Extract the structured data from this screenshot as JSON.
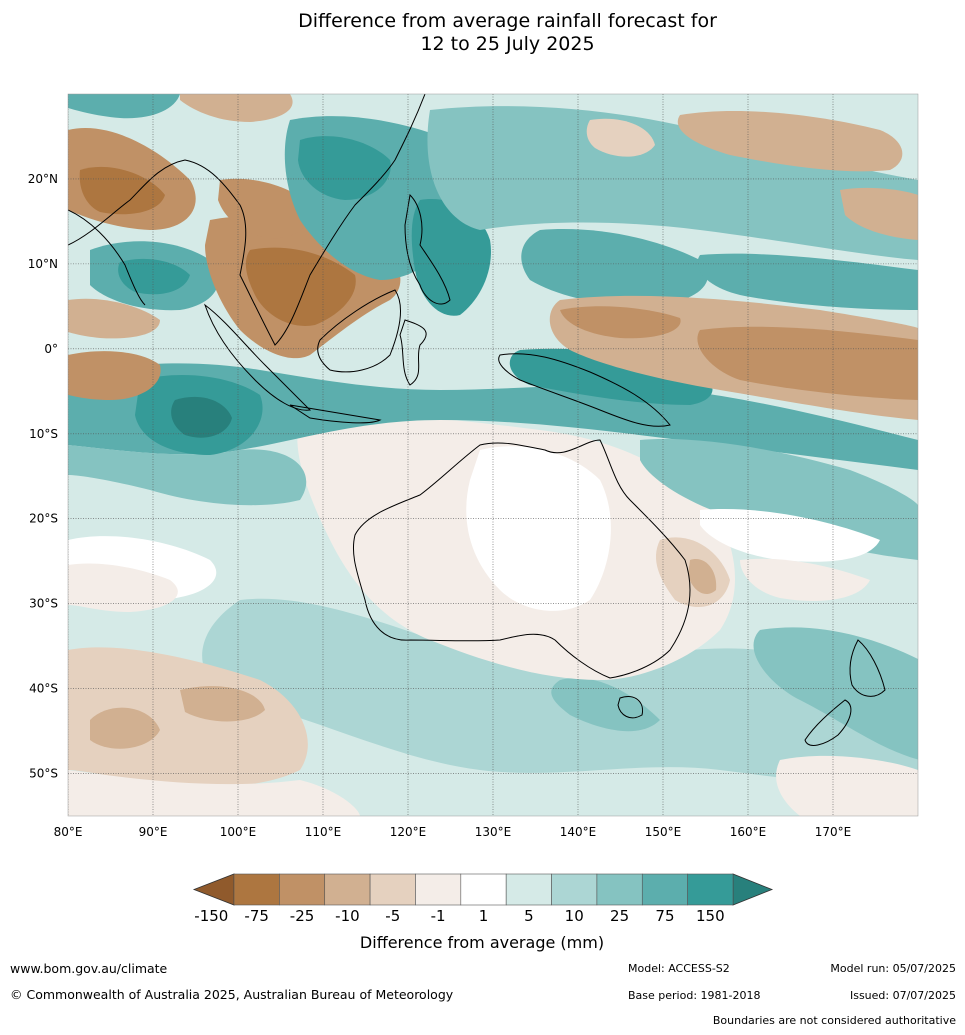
{
  "title_line1": "Difference from average rainfall forecast for",
  "title_line2": "12 to 25 July 2025",
  "map": {
    "lon_range": [
      80,
      180
    ],
    "lat_range": [
      -55,
      30
    ],
    "lat_labels": [
      "20°N",
      "10°N",
      "0°",
      "10°S",
      "20°S",
      "30°S",
      "40°S",
      "50°S"
    ],
    "lat_values": [
      20,
      10,
      0,
      -10,
      -20,
      -30,
      -40,
      -50
    ],
    "lon_labels": [
      "80°E",
      "90°E",
      "100°E",
      "110°E",
      "120°E",
      "130°E",
      "140°E",
      "150°E",
      "160°E",
      "170°E"
    ],
    "lon_values": [
      80,
      90,
      100,
      110,
      120,
      130,
      140,
      150,
      160,
      170
    ]
  },
  "colorbar": {
    "title": "Difference from average (mm)",
    "ticks": [
      "-150",
      "-75",
      "-25",
      "-10",
      "-5",
      "-1",
      "1",
      "5",
      "10",
      "25",
      "75",
      "150"
    ],
    "colors": [
      "#ad7640",
      "#c09166",
      "#d1b091",
      "#e5d1bf",
      "#f4ede8",
      "#ffffff",
      "#d5eae7",
      "#acd6d4",
      "#85c3c1",
      "#5caead",
      "#359b98"
    ],
    "under_color": "#905a2c",
    "over_color": "#28807c"
  },
  "footer": {
    "url": "www.bom.gov.au/climate",
    "copyright": "© Commonwealth of Australia 2025, Australian Bureau of Meteorology",
    "model": "Model: ACCESS-S2",
    "base_period": "Base period: 1981-2018",
    "model_run": "Model run: 05/07/2025",
    "issued": "Issued: 07/07/2025",
    "boundaries": "Boundaries are not considered authoritative"
  }
}
